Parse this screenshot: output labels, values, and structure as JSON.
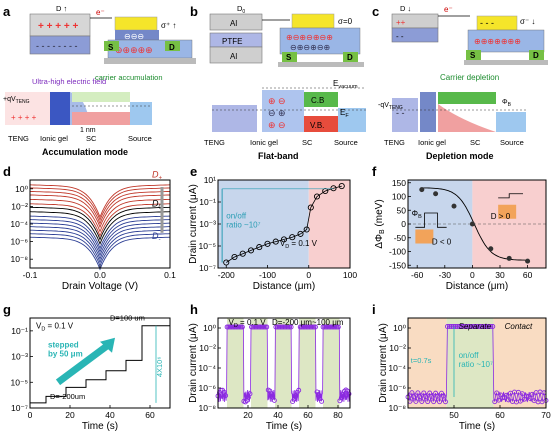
{
  "schematics": {
    "a": {
      "panel_letter": "a",
      "drive_label": "D ↑",
      "electron_label": "e⁻",
      "charge_label": "σ⁺ ↑",
      "thickness_label": "1nm",
      "s_label": "S",
      "d_label": "D",
      "field_label": "Ultra-high electric field",
      "accumulation_label": "carrier accumulation",
      "qv_label": "+qV",
      "qv_sub": "TENG",
      "width_label": "1 nm",
      "teng_label": "TENG",
      "gel_label": "Ionic gel",
      "sc_label": "SC",
      "source_label": "Source",
      "mode_title": "Accumulation mode"
    },
    "b": {
      "panel_letter": "b",
      "drive_label": "D",
      "drive_sub": "0",
      "al_top": "Al",
      "ptfe": "PTFE",
      "al_bottom": "Al",
      "sigma_label": "σ=0",
      "s_label": "S",
      "d_label": "D",
      "vacuum_label": "E",
      "vacuum_sub": "vacuum",
      "cb_label": "C.B",
      "ef_label": "E",
      "ef_sub": "F",
      "vb_label": "V.B.",
      "teng_label": "TENG",
      "gel_label": "Ionic gel",
      "sc_label": "SC",
      "source_label": "Source",
      "mode_title": "Flat-band"
    },
    "c": {
      "panel_letter": "c",
      "drive_label": "D ↓",
      "electron_label": "e⁻",
      "charge_label": "σ⁻ ↓",
      "s_label": "S",
      "d_label": "D",
      "depletion_label": "Carrier depletion",
      "qv_label": "-qV",
      "qv_sub": "TENG",
      "phi_label": "Φ",
      "phi_sub": "B",
      "teng_label": "TENG",
      "gel_label": "Ionic gel",
      "sc_label": "SC",
      "source_label": "Source",
      "mode_title": "Depletion mode"
    }
  },
  "chart_data": [
    {
      "panel": "d",
      "type": "line",
      "xlabel": "Drain Voltage (V)",
      "ylabel": "",
      "xlim": [
        -0.1,
        0.1
      ],
      "ylog": true,
      "ylim_exp": [
        -9,
        1
      ],
      "xticks": [
        "-0.1",
        "0.0",
        "0.1"
      ],
      "yticks": [
        "10⁰",
        "10⁻²",
        "10⁻⁴",
        "10⁻⁶",
        "10⁻⁸"
      ],
      "annotations": [
        "D",
        "D",
        "D"
      ],
      "annotation_subs": [
        "+",
        "0",
        "-"
      ],
      "series": [
        {
          "color": "#c0392b",
          "y_at_edge_exp": 0.45
        },
        {
          "color": "#c0392b",
          "y_at_edge_exp": 0.1
        },
        {
          "color": "#c0392b",
          "y_at_edge_exp": -0.3
        },
        {
          "color": "#c0392b",
          "y_at_edge_exp": -0.7
        },
        {
          "color": "#c0392b",
          "y_at_edge_exp": -1.2
        },
        {
          "color": "#c0392b",
          "y_at_edge_exp": -1.7
        },
        {
          "color": "#000000",
          "y_at_edge_exp": -2.1
        },
        {
          "color": "#000000",
          "y_at_edge_exp": -2.6
        },
        {
          "color": "#2c3e94",
          "y_at_edge_exp": -3.1
        },
        {
          "color": "#2c3e94",
          "y_at_edge_exp": -3.5
        },
        {
          "color": "#2c3e94",
          "y_at_edge_exp": -3.9
        },
        {
          "color": "#2c3e94",
          "y_at_edge_exp": -4.3
        },
        {
          "color": "#2c3e94",
          "y_at_edge_exp": -4.7
        },
        {
          "color": "#2c3e94",
          "y_at_edge_exp": -5.1
        },
        {
          "color": "#2c3e94",
          "y_at_edge_exp": -5.5
        }
      ]
    },
    {
      "panel": "e",
      "type": "scatter",
      "xlabel": "Distance (μm)",
      "ylabel": "Drain current (μA)",
      "xlim": [
        -220,
        100
      ],
      "ylog": true,
      "ylim_exp": [
        -7,
        1
      ],
      "xticks": [
        "-200",
        "-100",
        "0",
        "100"
      ],
      "yticks": [
        "10¹",
        "10⁻¹",
        "10⁻³",
        "10⁻⁵",
        "10⁻⁷"
      ],
      "annotation_onoff": "on/off",
      "annotation_ratio": "ratio ~10⁷",
      "annotation_vd": "V",
      "annotation_vd_sub": "D",
      "annotation_vd_val": "= 0.1 V",
      "x": [
        -200,
        -180,
        -160,
        -140,
        -120,
        -100,
        -80,
        -60,
        -40,
        -20,
        -5,
        5,
        20,
        40,
        60,
        80
      ],
      "y_exp": [
        -6.5,
        -6.0,
        -5.7,
        -5.4,
        -5.1,
        -4.8,
        -4.6,
        -4.4,
        -4.2,
        -3.9,
        -3.5,
        -1.5,
        -0.5,
        0.0,
        0.25,
        0.45
      ]
    },
    {
      "panel": "f",
      "type": "scatter",
      "xlabel": "Distance (μm)",
      "ylabel": "ΔΦ_B (meV)",
      "xlim": [
        -70,
        80
      ],
      "ylim": [
        -160,
        160
      ],
      "xticks": [
        "-60",
        "-30",
        "0",
        "30",
        "60"
      ],
      "yticks": [
        "150",
        "100",
        "50",
        "0",
        "-50",
        "-100",
        "-150"
      ],
      "annotation_left": "D < 0",
      "annotation_right": "D > 0",
      "annotation_phi": "Φ",
      "annotation_phi_sub": "B",
      "x": [
        -55,
        -40,
        -20,
        0,
        20,
        40,
        60
      ],
      "y": [
        125,
        110,
        65,
        0,
        -90,
        -125,
        -135
      ]
    },
    {
      "panel": "g",
      "type": "line",
      "xlabel": "Time (s)",
      "ylabel": "",
      "xlim": [
        0,
        70
      ],
      "ylog": true,
      "ylim_exp": [
        -7,
        0
      ],
      "xticks": [
        "0",
        "20",
        "40",
        "60"
      ],
      "yticks": [
        "10⁻¹",
        "10⁻³",
        "10⁻⁵",
        "10⁻⁷"
      ],
      "annotation_vd": "V",
      "annotation_vd_sub": "D",
      "annotation_vd_val": "= 0.1 V",
      "annotation_top": "D=100 um",
      "annotation_bottom": "D=-200um",
      "annotation_step": "stepped",
      "annotation_step2": "by 50 μm",
      "annotation_ratio": "4X10⁶",
      "steps_t": [
        0,
        8,
        18,
        28,
        38,
        48,
        56,
        70
      ],
      "steps_y_exp": [
        -6.6,
        -6.1,
        -5.4,
        -4.8,
        -4.1,
        -3.3,
        -0.6,
        -0.6
      ]
    },
    {
      "panel": "h",
      "type": "scatter",
      "xlabel": "Time (s)",
      "ylabel": "Drain current (μA)",
      "xlim": [
        0,
        88
      ],
      "ylog": true,
      "ylim_exp": [
        -8,
        1
      ],
      "xticks": [
        "20",
        "40",
        "60",
        "80"
      ],
      "yticks": [
        "10⁰",
        "10⁻²",
        "10⁻⁴",
        "10⁻⁶",
        "10⁻⁸"
      ],
      "annotation_vd": "V",
      "annotation_vd_sub": "D",
      "annotation_vd_val": "= 0.1 V",
      "annotation_range": "D=-200 μm~100 μm",
      "high_intervals": [
        [
          6,
          17
        ],
        [
          22,
          33
        ],
        [
          38,
          49
        ],
        [
          54,
          65
        ],
        [
          70,
          81
        ]
      ],
      "high_exp": 0.1,
      "low_exp": -6.8
    },
    {
      "panel": "i",
      "type": "scatter",
      "xlabel": "Time (s)",
      "ylabel": "Drain current (μA)",
      "xlim": [
        40,
        70
      ],
      "ylog": true,
      "ylim_exp": [
        -8,
        1
      ],
      "xticks": [
        "50",
        "60",
        "70"
      ],
      "yticks": [
        "10⁰",
        "10⁻²",
        "10⁻⁴",
        "10⁻⁶",
        "10⁻⁸"
      ],
      "annotation_separate": "Separate",
      "annotation_contact": "Contact",
      "annotation_t": "t=0.7s",
      "annotation_onoff": "on/off",
      "annotation_ratio": "ratio ~10⁷",
      "high_from": 48.4,
      "high_to": 58.6,
      "high_exp": 0.15,
      "low_exp": -6.9
    }
  ],
  "colors": {
    "blue_region": "#c7d6ec",
    "red_region": "#f8cfcf",
    "green_region": "#dde7c4",
    "orange_region": "#f9dcc2",
    "marker_purple": "#8b2ae0",
    "gold": "#f5e52a",
    "green_contact": "#76c044",
    "ionic_blue": "#7488c8",
    "red_charge": "#e84a4a"
  }
}
